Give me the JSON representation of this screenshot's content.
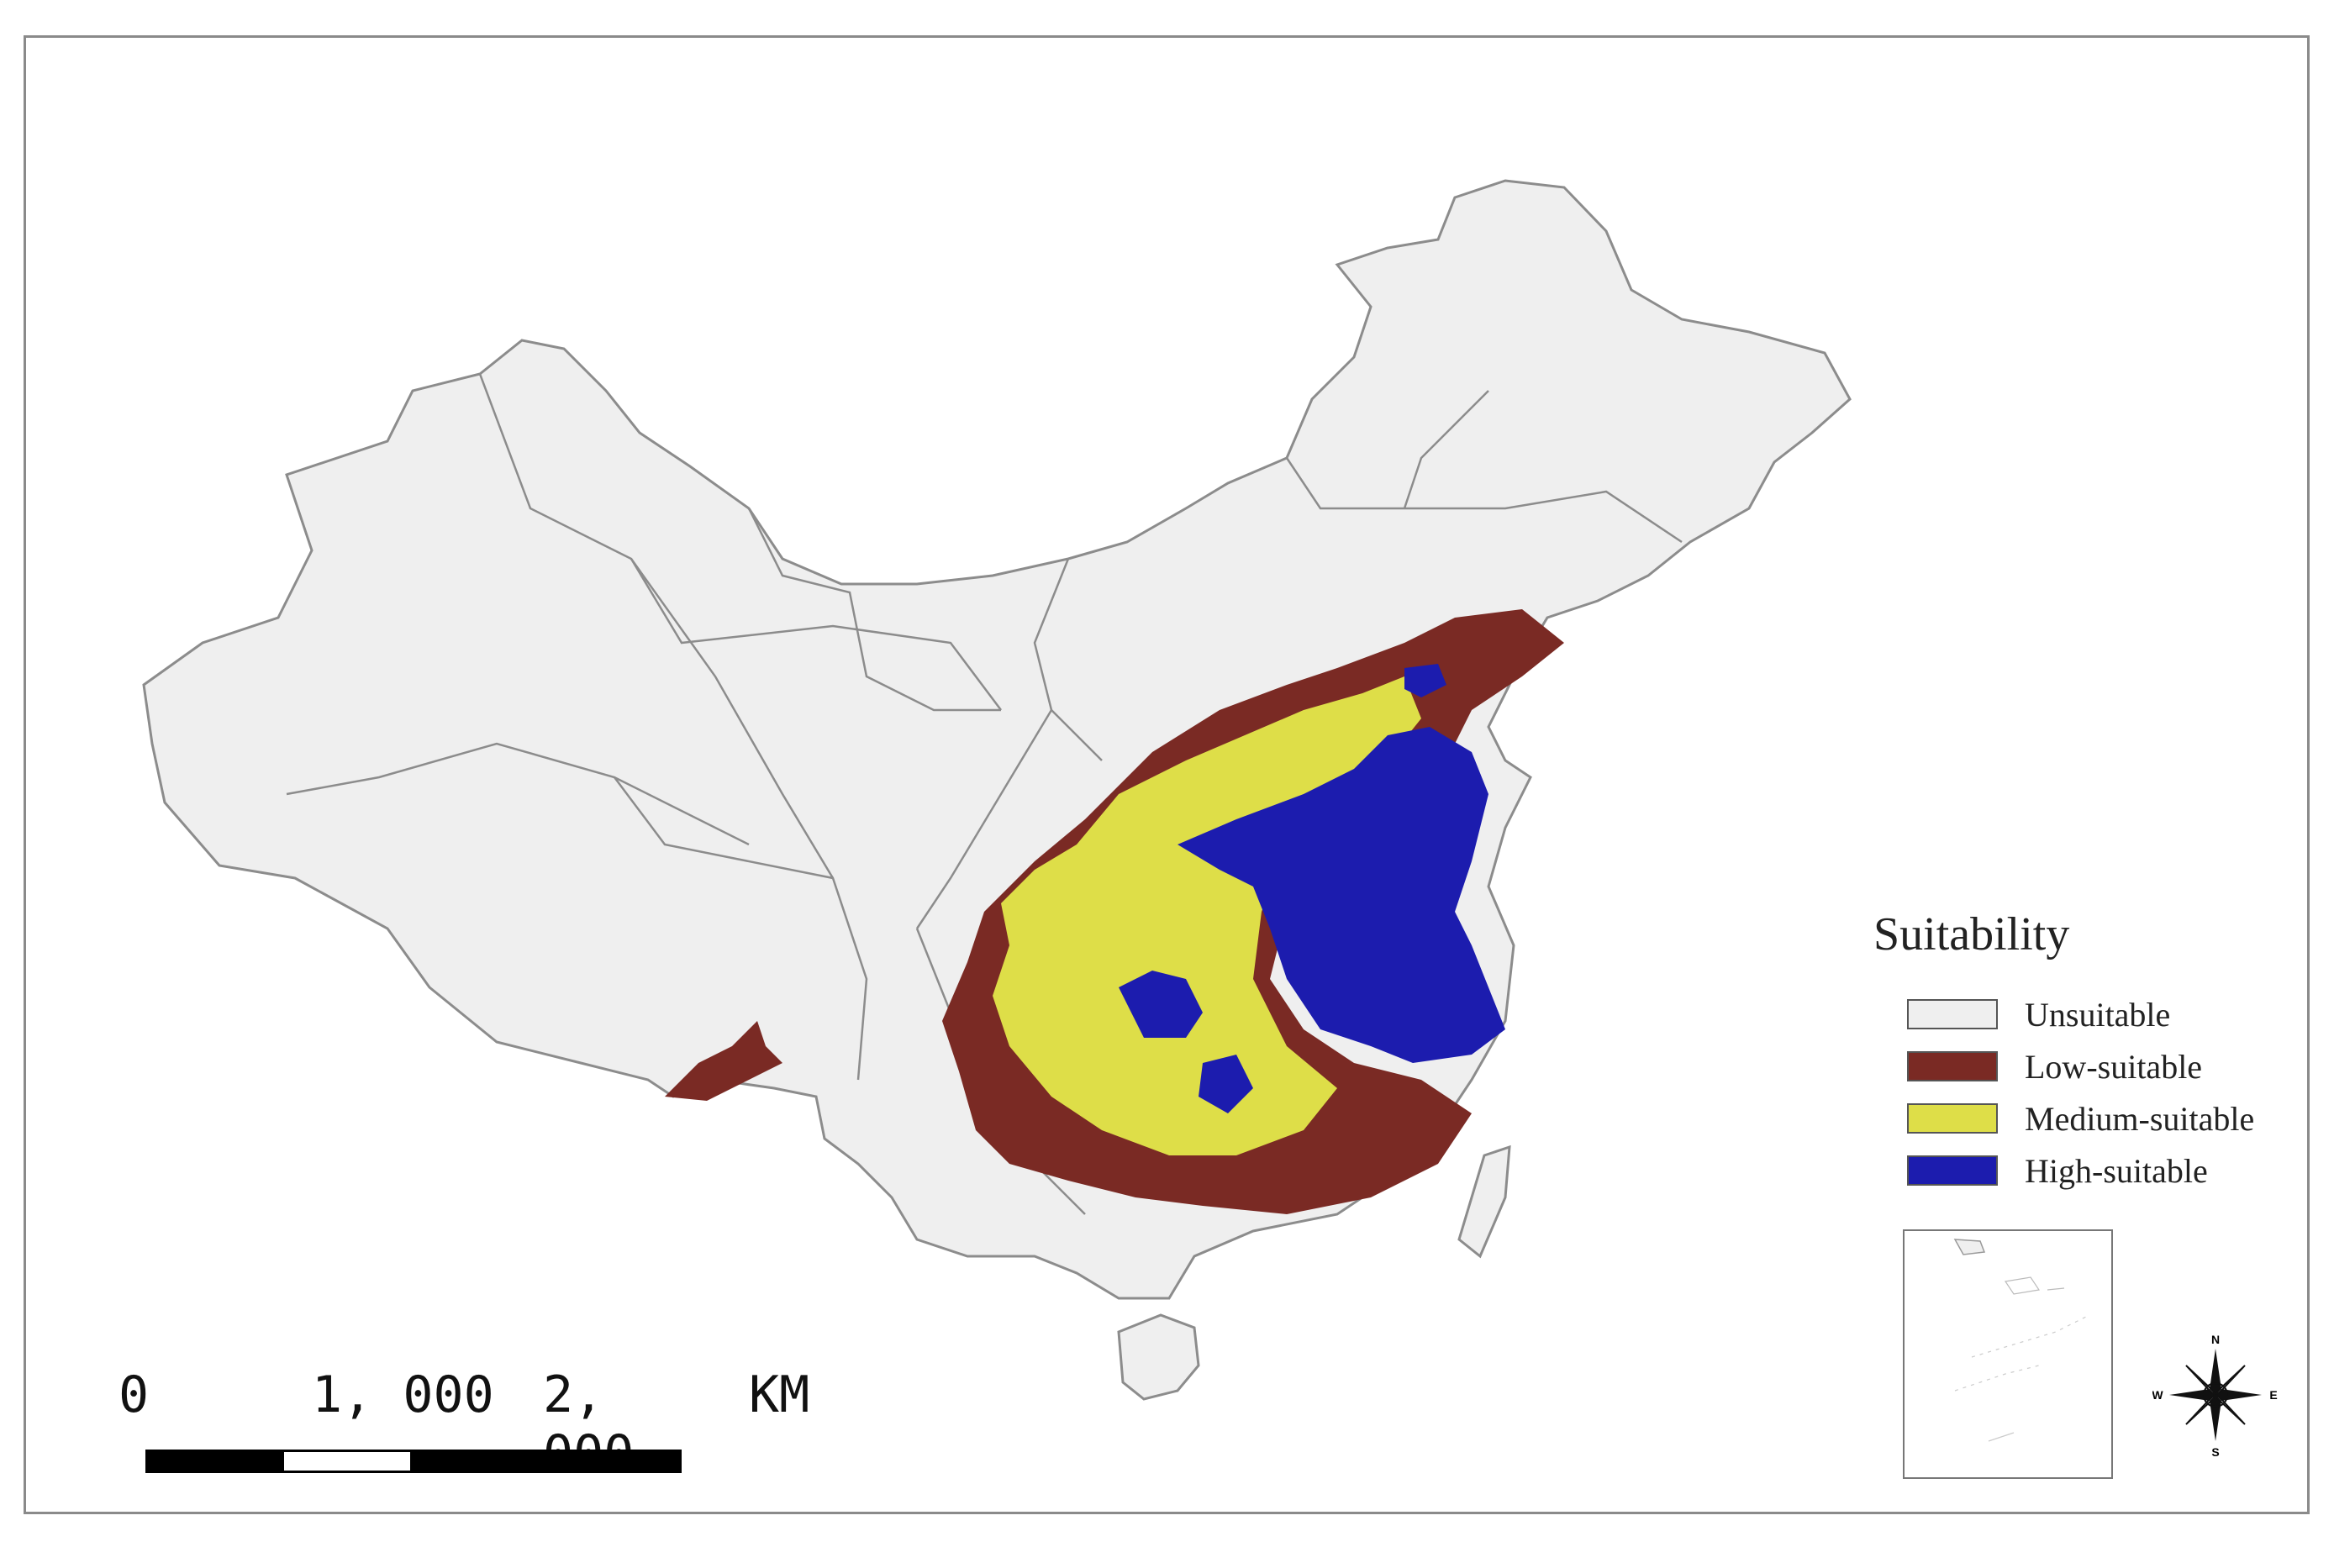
{
  "legend": {
    "title": "Suitability",
    "items": [
      {
        "label": "Unsuitable",
        "color": "#efefef"
      },
      {
        "label": "Low-suitable",
        "color": "#7a2a24"
      },
      {
        "label": "Medium-suitable",
        "color": "#dede48"
      },
      {
        "label": "High-suitable",
        "color": "#1c1cae"
      }
    ]
  },
  "scale_bar": {
    "labels": [
      "0",
      "1, 000",
      "2, 000"
    ],
    "unit": "KM"
  },
  "compass": {
    "n": "N",
    "s": "S",
    "e": "E",
    "w": "W"
  },
  "colors": {
    "country_fill": "#efefef",
    "boundary": "#8c8c8c",
    "low": "#7a2a24",
    "medium": "#dede48",
    "high": "#1c1cae"
  }
}
